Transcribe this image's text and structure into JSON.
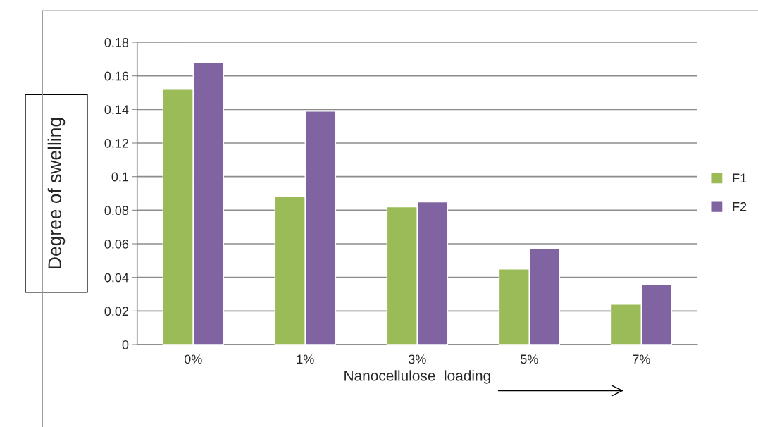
{
  "chart_data": {
    "type": "bar",
    "xlabel": "Nanocellulose  loading",
    "ylabel": "Degree of swelling",
    "categories": [
      "0%",
      "1%",
      "3%",
      "5%",
      "7%"
    ],
    "series": [
      {
        "name": "F1",
        "color": "#9bbb59",
        "values": [
          0.152,
          0.088,
          0.082,
          0.045,
          0.024
        ]
      },
      {
        "name": "F2",
        "color": "#8064a2",
        "values": [
          0.168,
          0.139,
          0.085,
          0.057,
          0.036
        ]
      }
    ],
    "ylim": [
      0,
      0.18
    ],
    "yticks": [
      0,
      0.02,
      0.04,
      0.06,
      0.08,
      0.1,
      0.12,
      0.14,
      0.16,
      0.18
    ],
    "grid": "y",
    "legend": "right"
  }
}
